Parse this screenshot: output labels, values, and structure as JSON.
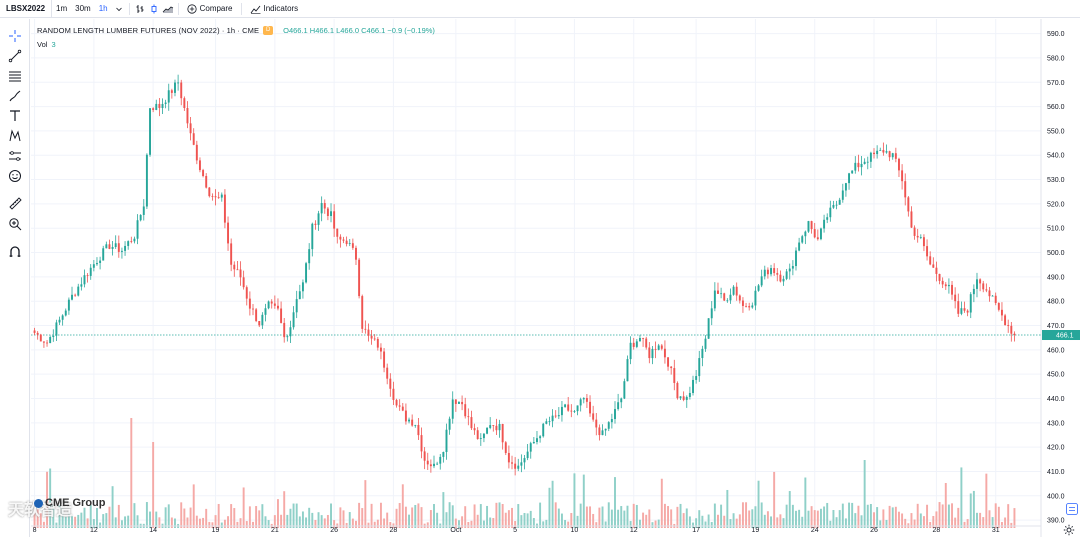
{
  "toolbar": {
    "symbol": "LBSX2022",
    "intervals": [
      "1m",
      "30m",
      "1h"
    ],
    "active_interval": "1h",
    "compare_label": "Compare",
    "indicators_label": "Indicators"
  },
  "legend": {
    "title": "RANDOM LENGTH LUMBER FUTURES (NOV 2022) · 1h · CME",
    "badge": "D",
    "ohlc": "O466.1  H466.1  L466.0  C466.1  −0.9 (−0.19%)",
    "vol_label": "Vol",
    "vol_value": "3"
  },
  "watermark": "天软智造",
  "logo": "CME Group",
  "colors": {
    "up": "#26a69a",
    "down": "#ef5350",
    "up_vol": "#8fd0c8",
    "down_vol": "#f5a9a6",
    "price_line": "#26a69a"
  },
  "chart_data": {
    "type": "candlestick",
    "title": "RANDOM LENGTH LUMBER FUTURES (NOV 2022) · 1h · CME",
    "ylim": [
      388,
      596
    ],
    "y_ticks": [
      390,
      400,
      410,
      420,
      430,
      440,
      450,
      460,
      470,
      480,
      490,
      500,
      510,
      520,
      530,
      540,
      550,
      560,
      570,
      580,
      590
    ],
    "x_ticks": [
      "8",
      "12",
      "14",
      "19",
      "21",
      "26",
      "28",
      "Oct",
      "5",
      "10",
      "12",
      "17",
      "19",
      "24",
      "26",
      "28",
      "31"
    ],
    "last_price": 466.1,
    "last_price_label": "466.1",
    "axis_position": "right",
    "grid": true,
    "anchors": [
      [
        0,
        467
      ],
      [
        4,
        463
      ],
      [
        8,
        472
      ],
      [
        12,
        482
      ],
      [
        16,
        490
      ],
      [
        20,
        497
      ],
      [
        24,
        503
      ],
      [
        28,
        501
      ],
      [
        32,
        507
      ],
      [
        35,
        520
      ],
      [
        37,
        560
      ],
      [
        40,
        560
      ],
      [
        43,
        565
      ],
      [
        46,
        570
      ],
      [
        50,
        548
      ],
      [
        53,
        535
      ],
      [
        56,
        525
      ],
      [
        58,
        522
      ],
      [
        60,
        522
      ],
      [
        63,
        495
      ],
      [
        66,
        490
      ],
      [
        69,
        478
      ],
      [
        72,
        471
      ],
      [
        75,
        478
      ],
      [
        78,
        476
      ],
      [
        80,
        465
      ],
      [
        82,
        470
      ],
      [
        84,
        482
      ],
      [
        86,
        487
      ],
      [
        89,
        510
      ],
      [
        92,
        520
      ],
      [
        95,
        515
      ],
      [
        97,
        505
      ],
      [
        100,
        505
      ],
      [
        103,
        498
      ],
      [
        105,
        470
      ],
      [
        107,
        465
      ],
      [
        110,
        462
      ],
      [
        113,
        450
      ],
      [
        116,
        437
      ],
      [
        119,
        432
      ],
      [
        122,
        430
      ],
      [
        125,
        415
      ],
      [
        128,
        412
      ],
      [
        131,
        420
      ],
      [
        134,
        440
      ],
      [
        137,
        438
      ],
      [
        140,
        428
      ],
      [
        143,
        422
      ],
      [
        146,
        430
      ],
      [
        149,
        428
      ],
      [
        152,
        415
      ],
      [
        155,
        412
      ],
      [
        158,
        418
      ],
      [
        161,
        424
      ],
      [
        164,
        430
      ],
      [
        167,
        432
      ],
      [
        170,
        436
      ],
      [
        173,
        434
      ],
      [
        176,
        440
      ],
      [
        179,
        430
      ],
      [
        182,
        425
      ],
      [
        185,
        432
      ],
      [
        188,
        440
      ],
      [
        191,
        462
      ],
      [
        194,
        465
      ],
      [
        197,
        458
      ],
      [
        200,
        463
      ],
      [
        203,
        455
      ],
      [
        206,
        442
      ],
      [
        209,
        440
      ],
      [
        212,
        450
      ],
      [
        215,
        465
      ],
      [
        218,
        485
      ],
      [
        221,
        480
      ],
      [
        224,
        486
      ],
      [
        227,
        478
      ],
      [
        230,
        480
      ],
      [
        233,
        490
      ],
      [
        236,
        494
      ],
      [
        239,
        490
      ],
      [
        242,
        492
      ],
      [
        245,
        505
      ],
      [
        248,
        512
      ],
      [
        251,
        505
      ],
      [
        254,
        515
      ],
      [
        257,
        520
      ],
      [
        260,
        530
      ],
      [
        263,
        535
      ],
      [
        266,
        538
      ],
      [
        269,
        540
      ],
      [
        272,
        542
      ],
      [
        275,
        540
      ],
      [
        278,
        530
      ],
      [
        281,
        510
      ],
      [
        284,
        505
      ],
      [
        287,
        495
      ],
      [
        290,
        490
      ],
      [
        293,
        485
      ],
      [
        296,
        475
      ],
      [
        299,
        477
      ],
      [
        302,
        490
      ],
      [
        305,
        485
      ],
      [
        308,
        478
      ],
      [
        311,
        472
      ],
      [
        314,
        466
      ]
    ],
    "n_candles": 315
  }
}
